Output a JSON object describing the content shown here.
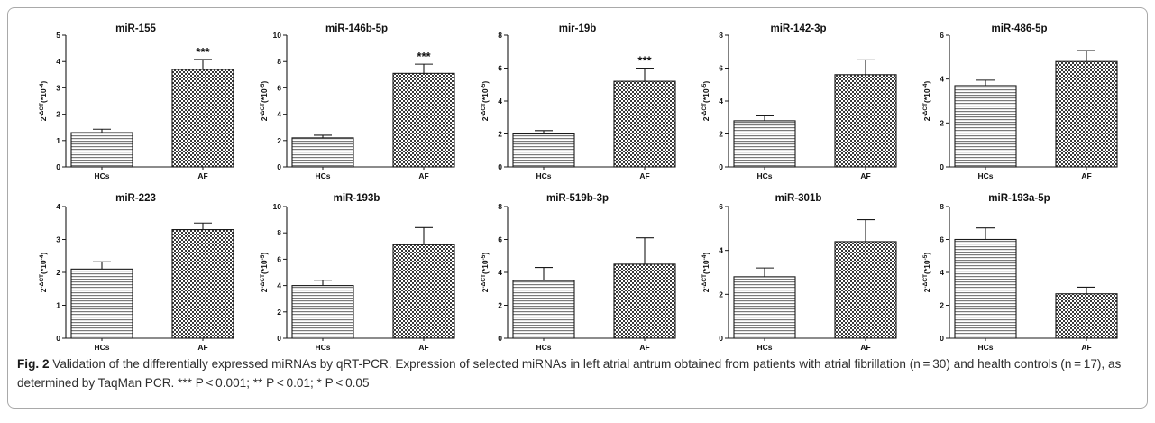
{
  "caption": {
    "label": "Fig. 2",
    "text": " Validation of the differentially expressed miRNAs by qRT-PCR. Expression of selected miRNAs in left atrial antrum obtained from patients with atrial fibrillation (n = 30) and health controls (n = 17), as determined by TaqMan PCR. ",
    "pvalues": "*** P < 0.001; ** P < 0.01; * P < 0.05"
  },
  "colors": {
    "bar_fill": "#d6d6d6",
    "bar_stroke": "#1a1a1a",
    "axis": "#1a1a1a",
    "border": "#a9a9a9"
  },
  "ylabel_base": "2",
  "chart_data": [
    {
      "type": "bar",
      "title": "miR-155",
      "ylabel_sup": "-ΔCT",
      "ylabel_unit": "(*10",
      "ylabel_unit_sup": "-4",
      "categories": [
        "HCs",
        "AF"
      ],
      "values": [
        1.3,
        3.7
      ],
      "errors": [
        0.13,
        0.38
      ],
      "ylim": [
        0,
        5
      ],
      "yticks": [
        0,
        1,
        2,
        3,
        4,
        5
      ],
      "annotations": [
        "",
        "***"
      ],
      "grid": false,
      "legend": "none"
    },
    {
      "type": "bar",
      "title": "miR-146b-5p",
      "ylabel_sup": "-ΔCT",
      "ylabel_unit": "(*10",
      "ylabel_unit_sup": "-5",
      "categories": [
        "HCs",
        "AF"
      ],
      "values": [
        2.2,
        7.1
      ],
      "errors": [
        0.2,
        0.7
      ],
      "ylim": [
        0,
        10
      ],
      "yticks": [
        0,
        2,
        4,
        6,
        8,
        10
      ],
      "annotations": [
        "",
        "***"
      ],
      "grid": false,
      "legend": "none"
    },
    {
      "type": "bar",
      "title": "mir-19b",
      "ylabel_sup": "-ΔCT",
      "ylabel_unit": "(*10",
      "ylabel_unit_sup": "-5",
      "categories": [
        "HCs",
        "AF"
      ],
      "values": [
        2.0,
        5.2
      ],
      "errors": [
        0.2,
        0.8
      ],
      "ylim": [
        0,
        8
      ],
      "yticks": [
        0,
        2,
        4,
        6,
        8
      ],
      "annotations": [
        "",
        "***"
      ],
      "grid": false,
      "legend": "none"
    },
    {
      "type": "bar",
      "title": "miR-142-3p",
      "ylabel_sup": "-ΔCT",
      "ylabel_unit": "(*10",
      "ylabel_unit_sup": "-5",
      "categories": [
        "HCs",
        "AF"
      ],
      "values": [
        2.8,
        5.6
      ],
      "errors": [
        0.3,
        0.9
      ],
      "ylim": [
        0,
        8
      ],
      "yticks": [
        0,
        2,
        4,
        6,
        8
      ],
      "annotations": [
        "",
        ""
      ],
      "grid": false,
      "legend": "none"
    },
    {
      "type": "bar",
      "title": "miR-486-5p",
      "ylabel_sup": "-ΔCT",
      "ylabel_unit": "(*10",
      "ylabel_unit_sup": "-4",
      "categories": [
        "HCs",
        "AF"
      ],
      "values": [
        3.7,
        4.8
      ],
      "errors": [
        0.25,
        0.5
      ],
      "ylim": [
        0,
        6
      ],
      "yticks": [
        0,
        2,
        4,
        6
      ],
      "annotations": [
        "",
        ""
      ],
      "grid": false,
      "legend": "none"
    },
    {
      "type": "bar",
      "title": "miR-223",
      "ylabel_sup": "-ΔCT",
      "ylabel_unit": "(*10",
      "ylabel_unit_sup": "-4",
      "categories": [
        "HCs",
        "AF"
      ],
      "values": [
        2.1,
        3.3
      ],
      "errors": [
        0.22,
        0.2
      ],
      "ylim": [
        0,
        4
      ],
      "yticks": [
        0,
        1,
        2,
        3,
        4
      ],
      "annotations": [
        "",
        ""
      ],
      "grid": false,
      "legend": "none"
    },
    {
      "type": "bar",
      "title": "miR-193b",
      "ylabel_sup": "-ΔCT",
      "ylabel_unit": "(*10",
      "ylabel_unit_sup": "-5",
      "categories": [
        "HCs",
        "AF"
      ],
      "values": [
        4.0,
        7.1
      ],
      "errors": [
        0.4,
        1.3
      ],
      "ylim": [
        0,
        10
      ],
      "yticks": [
        0,
        2,
        4,
        6,
        8,
        10
      ],
      "annotations": [
        "",
        ""
      ],
      "grid": false,
      "legend": "none"
    },
    {
      "type": "bar",
      "title": "miR-519b-3p",
      "ylabel_sup": "-ΔCT",
      "ylabel_unit": "(*10",
      "ylabel_unit_sup": "-5",
      "categories": [
        "HCs",
        "AF"
      ],
      "values": [
        3.5,
        4.5
      ],
      "errors": [
        0.8,
        1.6
      ],
      "ylim": [
        0,
        8
      ],
      "yticks": [
        0,
        2,
        4,
        6,
        8
      ],
      "annotations": [
        "",
        ""
      ],
      "grid": false,
      "legend": "none"
    },
    {
      "type": "bar",
      "title": "miR-301b",
      "ylabel_sup": "-ΔCT",
      "ylabel_unit": "(*10",
      "ylabel_unit_sup": "-4",
      "categories": [
        "HCs",
        "AF"
      ],
      "values": [
        2.8,
        4.4
      ],
      "errors": [
        0.4,
        1.0
      ],
      "ylim": [
        0,
        6
      ],
      "yticks": [
        0,
        2,
        4,
        6
      ],
      "annotations": [
        "",
        ""
      ],
      "grid": false,
      "legend": "none"
    },
    {
      "type": "bar",
      "title": "miR-193a-5p",
      "ylabel_sup": "-ΔCT",
      "ylabel_unit": "(*10",
      "ylabel_unit_sup": "-5",
      "categories": [
        "HCs",
        "AF"
      ],
      "values": [
        6.0,
        2.7
      ],
      "errors": [
        0.7,
        0.4
      ],
      "ylim": [
        0,
        8
      ],
      "yticks": [
        0,
        2,
        4,
        6,
        8
      ],
      "annotations": [
        "",
        ""
      ],
      "grid": false,
      "legend": "none"
    }
  ]
}
